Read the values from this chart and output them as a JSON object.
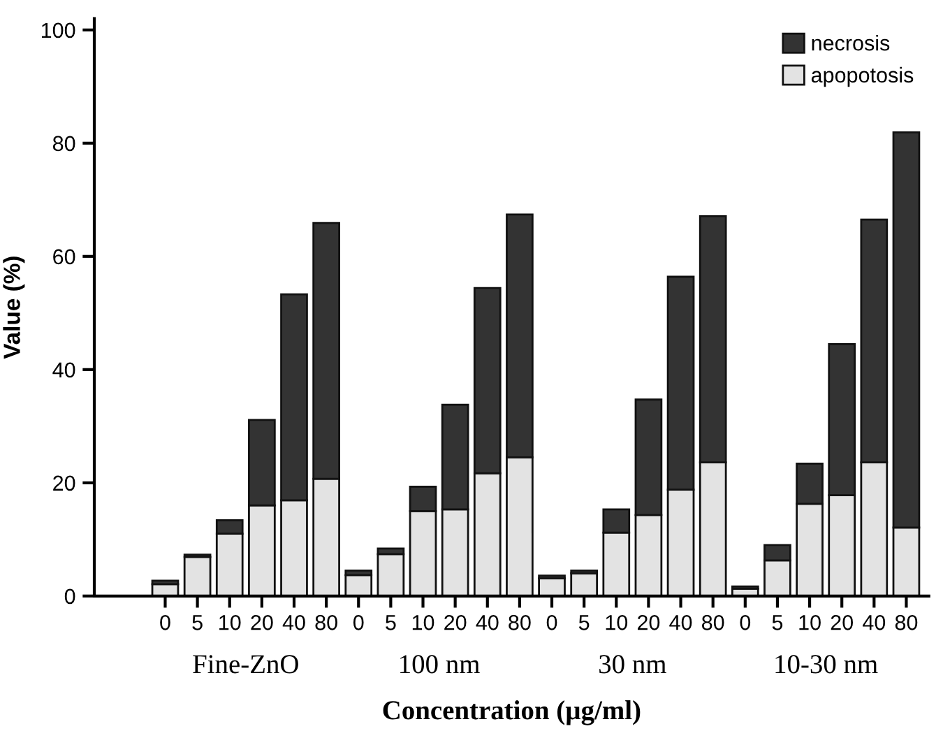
{
  "chart_data": {
    "type": "bar",
    "stacked": true,
    "xlabel": "Concentration (µg/ml)",
    "ylabel": "Value (%)",
    "categories": [
      "0",
      "5",
      "10",
      "20",
      "40",
      "80",
      "0",
      "5",
      "10",
      "20",
      "40",
      "80",
      "0",
      "5",
      "10",
      "20",
      "40",
      "80",
      "0",
      "5",
      "10",
      "20",
      "40",
      "80"
    ],
    "series": [
      {
        "name": "apopotosis",
        "color": "#e3e3e3",
        "values": [
          2.1,
          6.9,
          11.0,
          16.0,
          16.9,
          20.7,
          3.7,
          7.4,
          15.0,
          15.3,
          21.7,
          24.5,
          3.1,
          4.0,
          11.2,
          14.3,
          18.8,
          23.6,
          1.3,
          6.3,
          16.3,
          17.8,
          23.6,
          12.1
        ]
      },
      {
        "name": "necrosis",
        "color": "#333333",
        "values": [
          0.6,
          0.4,
          2.4,
          15.1,
          36.4,
          45.2,
          0.8,
          1.0,
          4.3,
          18.5,
          32.7,
          42.9,
          0.5,
          0.5,
          4.1,
          20.4,
          37.6,
          43.5,
          0.4,
          2.7,
          7.1,
          26.7,
          42.9,
          69.8
        ]
      }
    ],
    "annotations": [
      "Fine-ZnO",
      "100 nm",
      "30 nm",
      "10-30 nm"
    ],
    "ylim": [
      0,
      102
    ],
    "yticks": [
      0,
      20,
      40,
      60,
      80,
      100
    ],
    "grid": false,
    "legend": "top right"
  }
}
